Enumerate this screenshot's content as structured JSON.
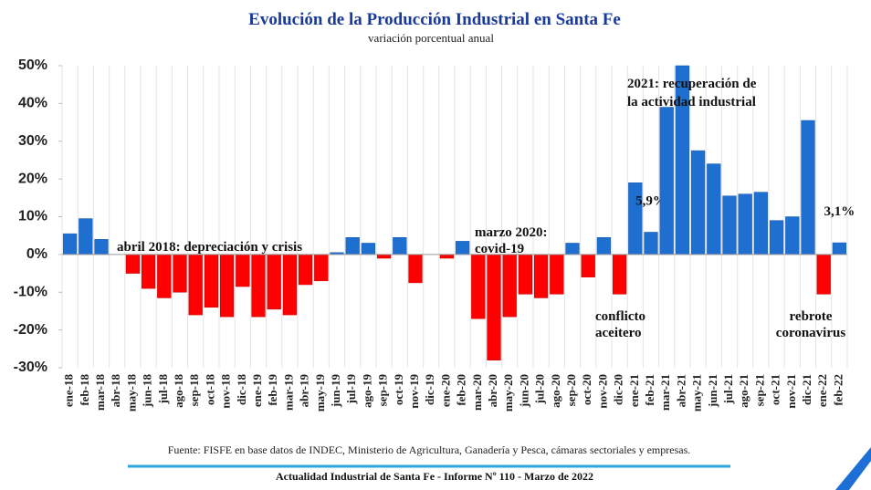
{
  "chart_data": {
    "type": "bar",
    "title": "Evolución de la Producción Industrial en Santa Fe",
    "subtitle": "variación porcentual anual",
    "categories": [
      "ene-18",
      "feb-18",
      "mar-18",
      "abr-18",
      "may-18",
      "jun-18",
      "jul-18",
      "ago-18",
      "sep-18",
      "oct-18",
      "nov-18",
      "dic-18",
      "ene-19",
      "feb-19",
      "mar-19",
      "abr-19",
      "may-19",
      "jun-19",
      "jul-19",
      "ago-19",
      "sep-19",
      "oct-19",
      "nov-19",
      "dic-19",
      "ene-20",
      "feb-20",
      "mar-20",
      "abr-20",
      "may-20",
      "jun-20",
      "jul-20",
      "ago-20",
      "sep-20",
      "oct-20",
      "nov-20",
      "dic-20",
      "ene-21",
      "feb-21",
      "mar-21",
      "abr-21",
      "may-21",
      "jun-21",
      "jul-21",
      "ago-21",
      "sep-21",
      "oct-21",
      "nov-21",
      "dic-21",
      "ene-22",
      "feb-22"
    ],
    "values": [
      5.5,
      9.5,
      4,
      0,
      -5,
      -9,
      -11.5,
      -10,
      -16,
      -14,
      -16.5,
      -8.5,
      -16.5,
      -14.5,
      -16,
      -8,
      -7,
      0.5,
      4.5,
      3,
      -1,
      4.5,
      -7.5,
      0,
      -1,
      3.5,
      -17,
      -28,
      -16.5,
      -10.5,
      -11.5,
      -10.5,
      3,
      -6,
      4.5,
      -10.5,
      19,
      5.9,
      39,
      50,
      27.5,
      24,
      15.5,
      16,
      16.5,
      9,
      10,
      35.5,
      -10.5,
      3.1
    ],
    "value_labels": [
      null,
      null,
      null,
      null,
      null,
      null,
      null,
      null,
      null,
      null,
      null,
      null,
      null,
      null,
      null,
      null,
      null,
      null,
      null,
      null,
      null,
      null,
      null,
      null,
      null,
      null,
      null,
      null,
      null,
      null,
      null,
      null,
      null,
      null,
      null,
      null,
      null,
      "5,9%",
      null,
      null,
      null,
      null,
      null,
      null,
      null,
      null,
      null,
      null,
      null,
      "3,1%"
    ],
    "color_positive": "#1f6fd1",
    "color_negative": "#ff0000",
    "ylim": [
      -30,
      50
    ],
    "yticks": [
      {
        "value": -30,
        "label": "-30%"
      },
      {
        "value": -20,
        "label": "-20%"
      },
      {
        "value": -10,
        "label": "-10%"
      },
      {
        "value": 0,
        "label": "0%"
      },
      {
        "value": 10,
        "label": "10%"
      },
      {
        "value": 20,
        "label": "20%"
      },
      {
        "value": 30,
        "label": "30%"
      },
      {
        "value": 40,
        "label": "40%"
      },
      {
        "value": 50,
        "label": "50%"
      }
    ],
    "annotations": [
      "abril 2018: depreciación y crisis",
      "marzo 2020:",
      "covid-19",
      "conflicto",
      "aceitero",
      "2021: recuperación de",
      "la actividad industrial",
      "rebrote",
      "coronavirus"
    ]
  },
  "footer": {
    "source": "Fuente: FISFE en base datos de INDEC, Ministerio de Agricultura, Ganadería y Pesca, cámaras sectoriales y empresas.",
    "report": "Actualidad Industrial de Santa Fe - Informe Nº 110 - Marzo de 2022"
  }
}
